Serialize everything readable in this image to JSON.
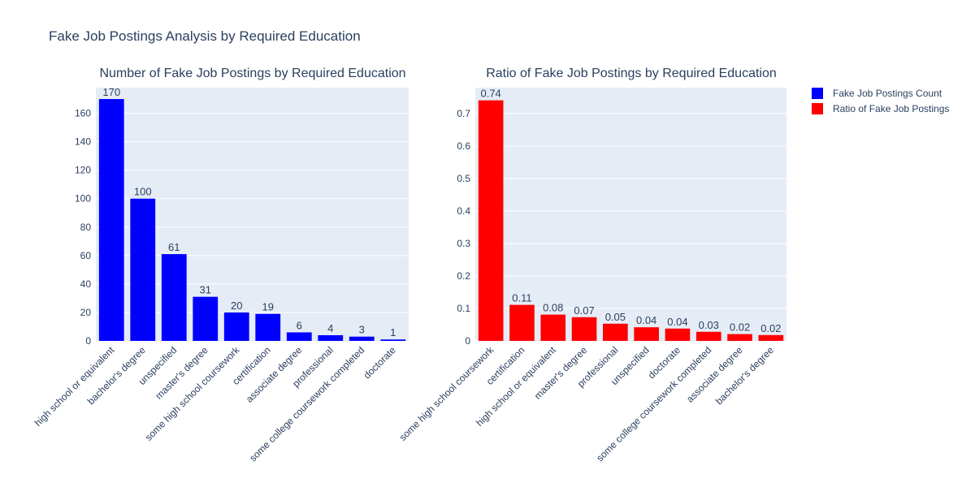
{
  "title": "Fake Job Postings Analysis by Required Education",
  "legend": [
    {
      "label": "Fake Job Postings Count",
      "color": "#0000ff"
    },
    {
      "label": "Ratio of Fake Job Postings",
      "color": "#ff0000"
    }
  ],
  "chart_data": [
    {
      "type": "bar",
      "title": "Number of Fake Job Postings by Required Education",
      "series_name": "Fake Job Postings Count",
      "color": "#0000ff",
      "categories": [
        "high school or equivalent",
        "bachelor's degree",
        "unspecified",
        "master's degree",
        "some high school coursework",
        "certification",
        "associate degree",
        "professional",
        "some college coursework completed",
        "doctorate"
      ],
      "values": [
        170,
        100,
        61,
        31,
        20,
        19,
        6,
        4,
        3,
        1
      ],
      "value_labels": [
        "170",
        "100",
        "61",
        "31",
        "20",
        "19",
        "6",
        "4",
        "3",
        "1"
      ],
      "ylim": [
        0,
        178
      ],
      "yticks": [
        0,
        20,
        40,
        60,
        80,
        100,
        120,
        140,
        160
      ],
      "ytick_labels": [
        "0",
        "20",
        "40",
        "60",
        "80",
        "100",
        "120",
        "140",
        "160"
      ]
    },
    {
      "type": "bar",
      "title": "Ratio of Fake Job Postings by Required Education",
      "series_name": "Ratio of Fake Job Postings",
      "color": "#ff0000",
      "categories": [
        "some high school coursework",
        "certification",
        "high school or equivalent",
        "master's degree",
        "professional",
        "unspecified",
        "doctorate",
        "some college coursework completed",
        "associate degree",
        "bachelor's degree"
      ],
      "values": [
        0.741,
        0.111,
        0.081,
        0.073,
        0.053,
        0.042,
        0.038,
        0.028,
        0.021,
        0.018
      ],
      "value_labels": [
        "0.74",
        "0.11",
        "0.08",
        "0.07",
        "0.05",
        "0.04",
        "0.04",
        "0.03",
        "0.02",
        "0.02"
      ],
      "ylim": [
        0,
        0.78
      ],
      "yticks": [
        0,
        0.1,
        0.2,
        0.3,
        0.4,
        0.5,
        0.6,
        0.7
      ],
      "ytick_labels": [
        "0",
        "0.1",
        "0.2",
        "0.3",
        "0.4",
        "0.5",
        "0.6",
        "0.7"
      ]
    }
  ]
}
